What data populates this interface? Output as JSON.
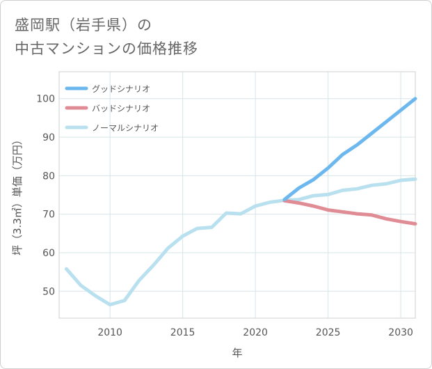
{
  "title": {
    "line1": "盛岡駅（岩手県）の",
    "line2": "中古マンションの価格推移"
  },
  "chart_data": {
    "type": "line",
    "xlabel": "年",
    "ylabel": "坪（3.3㎡）単価（万円）",
    "xlim": [
      2006.5,
      2031
    ],
    "ylim": [
      43,
      107
    ],
    "xticks": [
      2010,
      2015,
      2020,
      2025,
      2030
    ],
    "yticks": [
      50,
      60,
      70,
      80,
      90,
      100
    ],
    "grid": true,
    "legend_position": "top-left",
    "series": [
      {
        "name": "グッドシナリオ",
        "color": "#6cb8ee",
        "x": [
          2022,
          2023,
          2024,
          2025,
          2026,
          2027,
          2028,
          2029,
          2030,
          2031
        ],
        "y": [
          73.8,
          76.8,
          79.0,
          82.0,
          85.5,
          88.0,
          91.0,
          94.0,
          97.0,
          100.0
        ]
      },
      {
        "name": "バッドシナリオ",
        "color": "#e08c95",
        "x": [
          2022,
          2023,
          2024,
          2025,
          2026,
          2027,
          2028,
          2029,
          2030,
          2031
        ],
        "y": [
          73.5,
          72.9,
          72.1,
          71.1,
          70.6,
          70.1,
          69.8,
          68.8,
          68.1,
          67.5
        ]
      },
      {
        "name": "ノーマルシナリオ",
        "color": "#b9e0ee",
        "x": [
          2007,
          2008,
          2009,
          2010,
          2011,
          2012,
          2013,
          2014,
          2015,
          2016,
          2017,
          2018,
          2019,
          2020,
          2021,
          2022,
          2023,
          2024,
          2025,
          2026,
          2027,
          2028,
          2029,
          2030,
          2031
        ],
        "y": [
          55.8,
          51.5,
          48.8,
          46.5,
          47.6,
          52.8,
          56.8,
          61.2,
          64.3,
          66.3,
          66.6,
          70.3,
          70.1,
          72.1,
          73.1,
          73.6,
          73.8,
          74.8,
          75.1,
          76.2,
          76.6,
          77.5,
          77.9,
          78.8,
          79.1
        ]
      }
    ]
  }
}
